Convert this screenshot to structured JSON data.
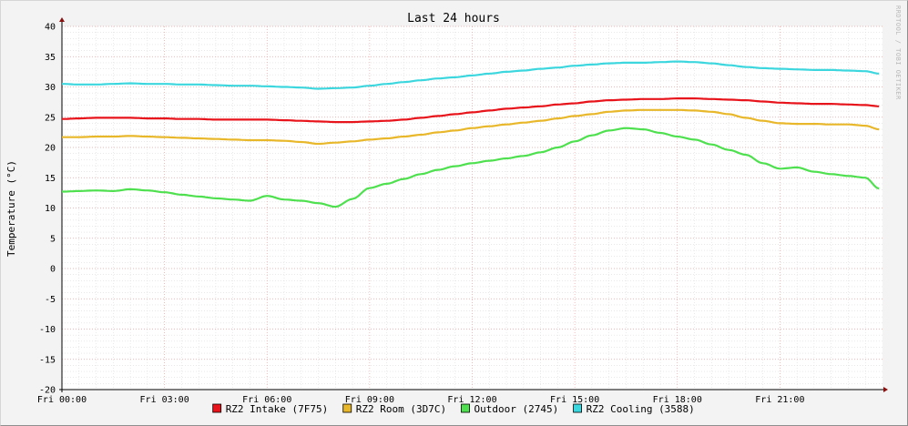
{
  "chart_data": {
    "type": "line",
    "title": "Last 24 hours",
    "ylabel": "Temperature (°C)",
    "xlabel": "",
    "watermark": "RRDTOOL / TOBI OETIKER",
    "ylim": [
      -20,
      40
    ],
    "y_ticks": [
      -20,
      -15,
      -10,
      -5,
      0,
      5,
      10,
      15,
      20,
      25,
      30,
      35,
      40
    ],
    "xlim": [
      0,
      24
    ],
    "x_ticks": [
      {
        "x": 0,
        "label": "Fri 00:00"
      },
      {
        "x": 3,
        "label": "Fri 03:00"
      },
      {
        "x": 6,
        "label": "Fri 06:00"
      },
      {
        "x": 9,
        "label": "Fri 09:00"
      },
      {
        "x": 12,
        "label": "Fri 12:00"
      },
      {
        "x": 15,
        "label": "Fri 15:00"
      },
      {
        "x": 18,
        "label": "Fri 18:00"
      },
      {
        "x": 21,
        "label": "Fri 21:00"
      }
    ],
    "grid": true,
    "legend_position": "bottom-center",
    "x": [
      0,
      0.5,
      1,
      1.5,
      2,
      2.5,
      3,
      3.5,
      4,
      4.5,
      5,
      5.5,
      6,
      6.5,
      7,
      7.5,
      8,
      8.5,
      9,
      9.5,
      10,
      10.5,
      11,
      11.5,
      12,
      12.5,
      13,
      13.5,
      14,
      14.5,
      15,
      15.5,
      16,
      16.5,
      17,
      17.5,
      18,
      18.5,
      19,
      19.5,
      20,
      20.5,
      21,
      21.5,
      22,
      22.5,
      23,
      23.5,
      23.9
    ],
    "series": [
      {
        "name": "RZ2 Intake (7F75)",
        "color": "#e8141b",
        "values": [
          24.7,
          24.8,
          24.9,
          24.9,
          24.9,
          24.8,
          24.8,
          24.7,
          24.7,
          24.6,
          24.6,
          24.6,
          24.6,
          24.5,
          24.4,
          24.3,
          24.2,
          24.2,
          24.3,
          24.4,
          24.6,
          24.9,
          25.2,
          25.5,
          25.8,
          26.1,
          26.4,
          26.6,
          26.8,
          27.1,
          27.3,
          27.6,
          27.8,
          27.9,
          28.0,
          28.0,
          28.1,
          28.1,
          28.0,
          27.9,
          27.8,
          27.6,
          27.4,
          27.3,
          27.2,
          27.2,
          27.1,
          27.0,
          26.8
        ]
      },
      {
        "name": "RZ2 Room (3D7C)",
        "color": "#e8b72a",
        "values": [
          21.7,
          21.7,
          21.8,
          21.8,
          21.9,
          21.8,
          21.7,
          21.6,
          21.5,
          21.4,
          21.3,
          21.2,
          21.2,
          21.1,
          20.9,
          20.6,
          20.8,
          21.0,
          21.3,
          21.5,
          21.8,
          22.1,
          22.5,
          22.8,
          23.2,
          23.5,
          23.8,
          24.1,
          24.4,
          24.8,
          25.2,
          25.5,
          25.9,
          26.1,
          26.2,
          26.2,
          26.2,
          26.1,
          25.9,
          25.5,
          24.9,
          24.4,
          24.0,
          23.9,
          23.9,
          23.8,
          23.8,
          23.6,
          23.0
        ]
      },
      {
        "name": "Outdoor (2745)",
        "color": "#4ee04e",
        "values": [
          12.7,
          12.8,
          12.9,
          12.8,
          13.1,
          12.9,
          12.6,
          12.2,
          11.9,
          11.6,
          11.4,
          11.2,
          12.0,
          11.4,
          11.2,
          10.8,
          10.2,
          11.5,
          13.3,
          14.0,
          14.8,
          15.6,
          16.3,
          16.9,
          17.4,
          17.8,
          18.2,
          18.6,
          19.2,
          20.0,
          21.0,
          22.0,
          22.8,
          23.2,
          23.0,
          22.4,
          21.8,
          21.3,
          20.5,
          19.6,
          18.8,
          17.4,
          16.5,
          16.7,
          16.0,
          15.6,
          15.3,
          15.0,
          13.2
        ]
      },
      {
        "name": "RZ2 Cooling (3588)",
        "color": "#3cd7de",
        "values": [
          30.5,
          30.4,
          30.4,
          30.5,
          30.6,
          30.5,
          30.5,
          30.4,
          30.4,
          30.3,
          30.2,
          30.2,
          30.1,
          30.0,
          29.9,
          29.7,
          29.8,
          29.9,
          30.2,
          30.5,
          30.8,
          31.1,
          31.4,
          31.6,
          31.9,
          32.2,
          32.5,
          32.7,
          33.0,
          33.2,
          33.5,
          33.7,
          33.9,
          34.0,
          34.0,
          34.1,
          34.2,
          34.1,
          33.9,
          33.6,
          33.3,
          33.1,
          33.0,
          32.9,
          32.8,
          32.8,
          32.7,
          32.6,
          32.2
        ]
      }
    ]
  }
}
